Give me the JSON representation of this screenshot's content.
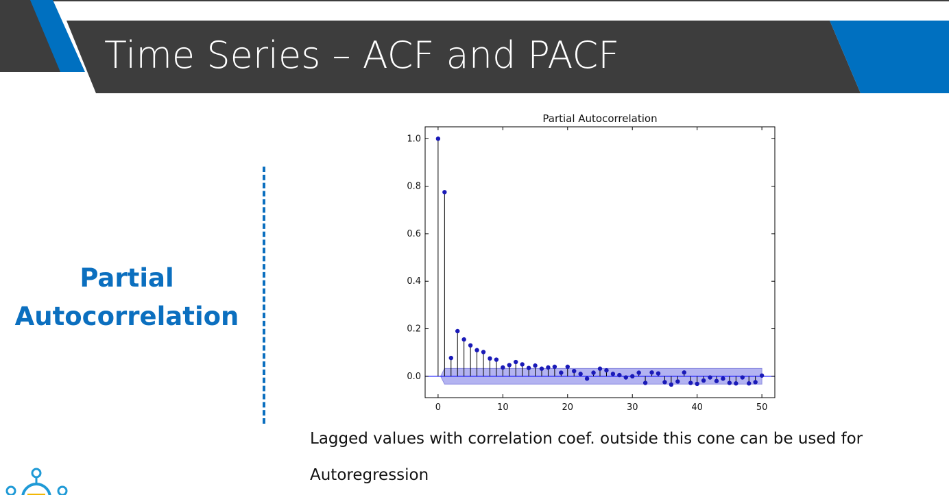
{
  "slide": {
    "title": "Time Series – ACF and PACF",
    "section_label": "Partial Autocorrelation",
    "caption_line1": "Lagged values with correlation coef. outside this cone  can be used for",
    "caption_line2": "Autoregression"
  },
  "colors": {
    "header_dark": "#3d3d3d",
    "accent_blue": "#0070c0",
    "label_blue": "#0b6fbf",
    "marker": "#1a1ab8",
    "cone_fill": "#a6a6ee",
    "zero_line": "#0000ff"
  },
  "logo": {
    "icon": "robot-network-icon"
  },
  "chart_data": {
    "type": "stem",
    "title": "Partial Autocorrelation",
    "xlim": [
      -2,
      52
    ],
    "ylim": [
      -0.09,
      1.05
    ],
    "xticks": [
      0,
      10,
      20,
      30,
      40,
      50
    ],
    "yticks": [
      0.0,
      0.2,
      0.4,
      0.6,
      0.8,
      1.0
    ],
    "ytick_labels": [
      "0.0",
      "0.2",
      "0.4",
      "0.6",
      "0.8",
      "1.0"
    ],
    "grid": false,
    "confidence_band": {
      "from_lag": 1,
      "to_lag": 50,
      "half_width": 0.033
    },
    "lags": [
      0,
      1,
      2,
      3,
      4,
      5,
      6,
      7,
      8,
      9,
      10,
      11,
      12,
      13,
      14,
      15,
      16,
      17,
      18,
      19,
      20,
      21,
      22,
      23,
      24,
      25,
      26,
      27,
      28,
      29,
      30,
      31,
      32,
      33,
      34,
      35,
      36,
      37,
      38,
      39,
      40,
      41,
      42,
      43,
      44,
      45,
      46,
      47,
      48,
      49,
      50
    ],
    "values": [
      1.0,
      0.775,
      0.077,
      0.19,
      0.155,
      0.13,
      0.11,
      0.102,
      0.075,
      0.07,
      0.037,
      0.047,
      0.06,
      0.05,
      0.035,
      0.045,
      0.032,
      0.037,
      0.04,
      0.015,
      0.04,
      0.022,
      0.01,
      -0.01,
      0.015,
      0.032,
      0.025,
      0.01,
      0.005,
      -0.005,
      0.0,
      0.015,
      -0.028,
      0.016,
      0.012,
      -0.025,
      -0.035,
      -0.022,
      0.016,
      -0.028,
      -0.032,
      -0.018,
      -0.005,
      -0.02,
      -0.01,
      -0.028,
      -0.03,
      -0.005,
      -0.03,
      -0.025,
      0.003
    ]
  }
}
